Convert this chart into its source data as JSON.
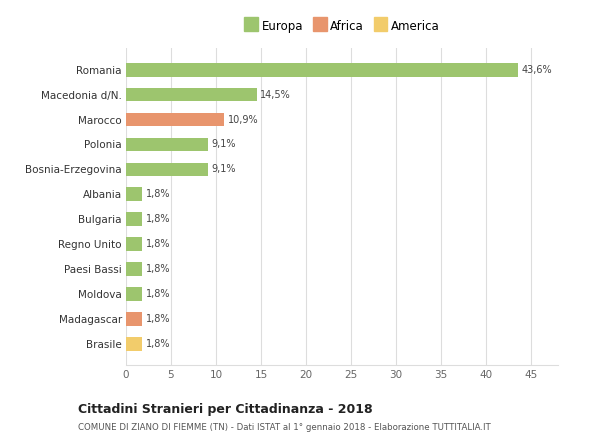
{
  "categories": [
    "Brasile",
    "Madagascar",
    "Moldova",
    "Paesi Bassi",
    "Regno Unito",
    "Bulgaria",
    "Albania",
    "Bosnia-Erzegovina",
    "Polonia",
    "Marocco",
    "Macedonia d/N.",
    "Romania"
  ],
  "values": [
    1.8,
    1.8,
    1.8,
    1.8,
    1.8,
    1.8,
    1.8,
    9.1,
    9.1,
    10.9,
    14.5,
    43.6
  ],
  "labels": [
    "1,8%",
    "1,8%",
    "1,8%",
    "1,8%",
    "1,8%",
    "1,8%",
    "1,8%",
    "9,1%",
    "9,1%",
    "10,9%",
    "14,5%",
    "43,6%"
  ],
  "colors": [
    "#f2cc6b",
    "#e8956d",
    "#9dc56e",
    "#9dc56e",
    "#9dc56e",
    "#9dc56e",
    "#9dc56e",
    "#9dc56e",
    "#9dc56e",
    "#e8956d",
    "#9dc56e",
    "#9dc56e"
  ],
  "legend_labels": [
    "Europa",
    "Africa",
    "America"
  ],
  "legend_colors": [
    "#9dc56e",
    "#e8956d",
    "#f2cc6b"
  ],
  "title": "Cittadini Stranieri per Cittadinanza - 2018",
  "subtitle": "COMUNE DI ZIANO DI FIEMME (TN) - Dati ISTAT al 1° gennaio 2018 - Elaborazione TUTTITALIA.IT",
  "xlim": [
    0,
    48
  ],
  "xticks": [
    0,
    5,
    10,
    15,
    20,
    25,
    30,
    35,
    40,
    45
  ],
  "bg_color": "#ffffff",
  "grid_color": "#dddddd"
}
